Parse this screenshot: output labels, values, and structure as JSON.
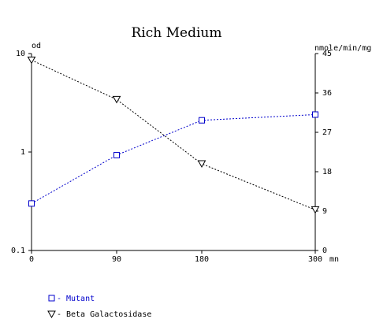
{
  "chart_data": {
    "type": "line",
    "title": "Rich Medium",
    "x": [
      0,
      90,
      180,
      300
    ],
    "xticks": [
      "0",
      "90",
      "180",
      "300"
    ],
    "xunit": "mn",
    "xlim": [
      0,
      300
    ],
    "left_axis": {
      "label": "od",
      "scale": "log",
      "range": [
        0.1,
        10
      ],
      "ticks": [
        "10",
        "1",
        "0.1"
      ]
    },
    "right_axis": {
      "label": "nmole/min/mg",
      "scale": "linear",
      "range": [
        0,
        45
      ],
      "ticks": [
        "45",
        "36",
        "27",
        "18",
        "9",
        "0"
      ]
    },
    "grid": false,
    "legend_position": "bottom-left",
    "series": [
      {
        "name": "Mutant",
        "axis": "left",
        "marker": "square",
        "color": "#0000cc",
        "values": [
          0.3,
          0.93,
          2.1,
          2.4
        ]
      },
      {
        "name": "Beta Galactosidase",
        "axis": "right",
        "marker": "triangle-down",
        "color": "#000000",
        "values": [
          43.5,
          34.5,
          19.8,
          9.3
        ]
      }
    ]
  }
}
